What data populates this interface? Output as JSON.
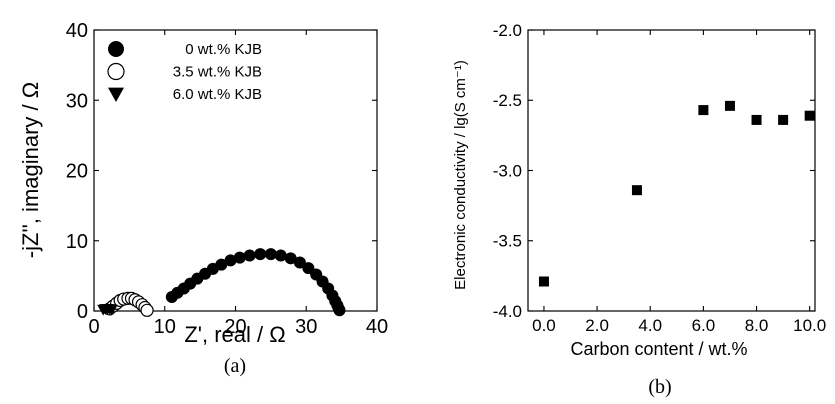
{
  "chart_data": [
    {
      "type": "scatter",
      "panel_label": "a",
      "xlabel": "Z', real / Ω",
      "ylabel": "-jZ'', imaginary / Ω",
      "xlim": [
        0,
        40
      ],
      "ylim": [
        0,
        40
      ],
      "xticks": [
        "0",
        "10",
        "20",
        "30",
        "40"
      ],
      "yticks": [
        "0",
        "10",
        "20",
        "30",
        "40"
      ],
      "legend_position": "top-left",
      "series": [
        {
          "name": "0 wt.% KJB",
          "marker": "filled-circle",
          "x": [
            11.0,
            11.8,
            12.7,
            13.6,
            14.6,
            15.7,
            16.8,
            18.0,
            19.3,
            20.6,
            22.0,
            23.5,
            25.0,
            26.4,
            27.8,
            29.1,
            30.3,
            31.4,
            32.3,
            33.1,
            33.7,
            34.1,
            34.4,
            34.6,
            34.7
          ],
          "y": [
            2.0,
            2.6,
            3.2,
            3.9,
            4.6,
            5.3,
            6.0,
            6.6,
            7.2,
            7.6,
            7.9,
            8.1,
            8.1,
            7.9,
            7.5,
            6.9,
            6.1,
            5.2,
            4.2,
            3.2,
            2.2,
            1.4,
            0.8,
            0.3,
            0.1
          ]
        },
        {
          "name": "3.5 wt.% KJB",
          "marker": "open-circle",
          "x": [
            2.2,
            2.7,
            3.2,
            3.7,
            4.2,
            4.8,
            5.3,
            5.8,
            6.3,
            6.8,
            7.2,
            7.5
          ],
          "y": [
            0.3,
            0.7,
            1.1,
            1.5,
            1.7,
            1.8,
            1.8,
            1.6,
            1.3,
            0.9,
            0.5,
            0.1
          ]
        },
        {
          "name": "6.0 wt.% KJB",
          "marker": "filled-triangle-down",
          "x": [
            1.3,
            1.6,
            1.9,
            2.2,
            2.5
          ],
          "y": [
            0.2,
            0.3,
            0.3,
            0.3,
            0.2
          ]
        }
      ]
    },
    {
      "type": "scatter",
      "panel_label": "b",
      "xlabel": "Carbon content / wt.%",
      "ylabel": "Electronic conductivity / lg(S cm⁻¹)",
      "xlim": [
        -0.6,
        10.2
      ],
      "ylim": [
        -4.0,
        -2.0
      ],
      "xticks": [
        "0.0",
        "2.0",
        "4.0",
        "6.0",
        "8.0",
        "10.0"
      ],
      "yticks": [
        "-2.0",
        "-2.5",
        "-3.0",
        "-3.5",
        "-4.0"
      ],
      "series": [
        {
          "marker": "filled-square",
          "x": [
            0.0,
            3.5,
            6.0,
            7.0,
            8.0,
            9.0,
            10.0
          ],
          "y": [
            -3.79,
            -3.14,
            -2.57,
            -2.54,
            -2.64,
            -2.64,
            -2.61
          ]
        }
      ]
    }
  ],
  "panel_labels": [
    "(a)",
    "(b)"
  ]
}
